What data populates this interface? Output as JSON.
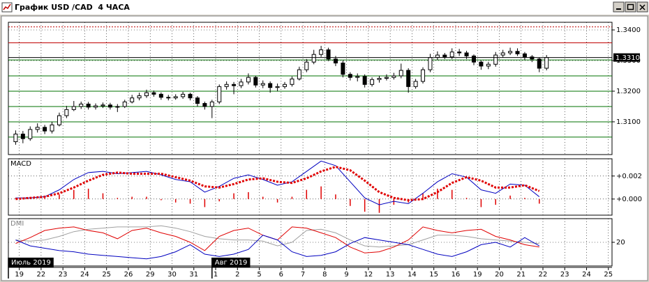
{
  "window_title": "График USD /CAD  4 ЧАСА",
  "x_axis": {
    "xlim": [
      -3,
      163
    ],
    "xticks": [
      {
        "value": 0,
        "label": "19"
      },
      {
        "value": 6,
        "label": "22"
      },
      {
        "value": 12,
        "label": "23"
      },
      {
        "value": 18,
        "label": "24"
      },
      {
        "value": 24,
        "label": "25"
      },
      {
        "value": 30,
        "label": "26"
      },
      {
        "value": 36,
        "label": "29"
      },
      {
        "value": 42,
        "label": "30"
      },
      {
        "value": 48,
        "label": "31"
      },
      {
        "value": 54,
        "label": "1"
      },
      {
        "value": 60,
        "label": "2"
      },
      {
        "value": 66,
        "label": "5"
      },
      {
        "value": 72,
        "label": "6"
      },
      {
        "value": 78,
        "label": "7"
      },
      {
        "value": 84,
        "label": "8"
      },
      {
        "value": 90,
        "label": "9"
      },
      {
        "value": 96,
        "label": "12"
      },
      {
        "value": 102,
        "label": "13"
      },
      {
        "value": 108,
        "label": "14"
      },
      {
        "value": 114,
        "label": "15"
      },
      {
        "value": 120,
        "label": "16"
      },
      {
        "value": 126,
        "label": "19"
      },
      {
        "value": 132,
        "label": "20"
      },
      {
        "value": 138,
        "label": "21"
      },
      {
        "value": 144,
        "label": "22"
      },
      {
        "value": 150,
        "label": "23"
      },
      {
        "value": 156,
        "label": "24"
      },
      {
        "value": 162,
        "label": "25"
      }
    ],
    "periods": [
      {
        "value": -3,
        "label": "Июль 2019"
      },
      {
        "value": 53,
        "label": "Авг 2019"
      }
    ]
  },
  "chart_data": [
    {
      "type": "candlestick",
      "ylim": [
        1.2993,
        1.3425
      ],
      "yticks": [
        {
          "value": 1.31,
          "label": "1.3100"
        },
        {
          "value": 1.32,
          "label": "1.3200"
        },
        {
          "value": 1.33,
          "label": "1.3300"
        },
        {
          "value": 1.34,
          "label": "1.3400"
        }
      ],
      "grid": true,
      "colors": {
        "up": "#ffffff",
        "down": "#000000",
        "outline": "#000000"
      },
      "x": [
        -1,
        1,
        3,
        5,
        7,
        9,
        11,
        13,
        15,
        17,
        19,
        21,
        23,
        25,
        27,
        29,
        31,
        33,
        35,
        37,
        39,
        41,
        43,
        45,
        47,
        49,
        51,
        53,
        55,
        57,
        59,
        61,
        63,
        65,
        67,
        69,
        71,
        73,
        75,
        77,
        79,
        81,
        83,
        85,
        87,
        89,
        91,
        93,
        95,
        97,
        99,
        101,
        103,
        105,
        107,
        109,
        111,
        113,
        115,
        117,
        119,
        121,
        123,
        125,
        127,
        129,
        131,
        133,
        135,
        137,
        139,
        141,
        143,
        145
      ],
      "open": [
        1.3035,
        1.306,
        1.3045,
        1.3075,
        1.3082,
        1.307,
        1.309,
        1.312,
        1.314,
        1.315,
        1.3158,
        1.3148,
        1.3152,
        1.3155,
        1.3148,
        1.315,
        1.3165,
        1.3178,
        1.3185,
        1.3195,
        1.319,
        1.318,
        1.3178,
        1.3182,
        1.319,
        1.3178,
        1.316,
        1.315,
        1.3165,
        1.3215,
        1.3222,
        1.3218,
        1.323,
        1.3245,
        1.322,
        1.3225,
        1.3212,
        1.3215,
        1.3222,
        1.324,
        1.327,
        1.3295,
        1.332,
        1.3335,
        1.3305,
        1.3292,
        1.3255,
        1.3245,
        1.3248,
        1.3222,
        1.3238,
        1.3242,
        1.3245,
        1.325,
        1.3268,
        1.3215,
        1.3232,
        1.327,
        1.331,
        1.3318,
        1.3312,
        1.3328,
        1.3325,
        1.3315,
        1.3295,
        1.3282,
        1.3288,
        1.3318,
        1.3325,
        1.333,
        1.3322,
        1.3312,
        1.3305,
        1.3275
      ],
      "high": [
        1.3072,
        1.307,
        1.3085,
        1.3095,
        1.309,
        1.31,
        1.313,
        1.3152,
        1.3168,
        1.3166,
        1.3165,
        1.316,
        1.3163,
        1.3162,
        1.3158,
        1.3172,
        1.3188,
        1.3195,
        1.3205,
        1.3202,
        1.3196,
        1.3188,
        1.319,
        1.3198,
        1.3195,
        1.3184,
        1.3166,
        1.3172,
        1.3222,
        1.3232,
        1.323,
        1.324,
        1.3258,
        1.325,
        1.3235,
        1.3232,
        1.3225,
        1.323,
        1.3248,
        1.328,
        1.3305,
        1.3335,
        1.3348,
        1.3342,
        1.3315,
        1.33,
        1.3262,
        1.3258,
        1.3255,
        1.3245,
        1.325,
        1.3255,
        1.326,
        1.329,
        1.3275,
        1.324,
        1.3278,
        1.3322,
        1.333,
        1.3325,
        1.334,
        1.3338,
        1.3332,
        1.332,
        1.33,
        1.3296,
        1.3328,
        1.3335,
        1.3342,
        1.334,
        1.3328,
        1.3318,
        1.331,
        1.3318
      ],
      "low": [
        1.3025,
        1.303,
        1.3038,
        1.3065,
        1.306,
        1.3062,
        1.3085,
        1.3112,
        1.3135,
        1.3142,
        1.314,
        1.314,
        1.3145,
        1.314,
        1.3132,
        1.3145,
        1.316,
        1.317,
        1.3178,
        1.3182,
        1.3172,
        1.317,
        1.3172,
        1.3175,
        1.317,
        1.315,
        1.314,
        1.3112,
        1.3158,
        1.3205,
        1.319,
        1.321,
        1.3222,
        1.3212,
        1.321,
        1.3195,
        1.32,
        1.3208,
        1.3215,
        1.3235,
        1.3262,
        1.3288,
        1.3312,
        1.3298,
        1.3282,
        1.3245,
        1.3235,
        1.3232,
        1.3212,
        1.3215,
        1.3228,
        1.3235,
        1.3238,
        1.3242,
        1.3195,
        1.3208,
        1.3225,
        1.3262,
        1.3302,
        1.3305,
        1.3305,
        1.3315,
        1.3305,
        1.3285,
        1.327,
        1.3272,
        1.328,
        1.331,
        1.3318,
        1.3315,
        1.3302,
        1.3295,
        1.3262,
        1.3268
      ],
      "close": [
        1.306,
        1.3045,
        1.3075,
        1.3082,
        1.307,
        1.309,
        1.312,
        1.314,
        1.315,
        1.3158,
        1.3148,
        1.3152,
        1.3155,
        1.3148,
        1.315,
        1.3165,
        1.3178,
        1.3185,
        1.3195,
        1.319,
        1.318,
        1.3178,
        1.3182,
        1.319,
        1.3178,
        1.316,
        1.315,
        1.3165,
        1.3215,
        1.3222,
        1.3218,
        1.323,
        1.3245,
        1.322,
        1.3225,
        1.3212,
        1.3215,
        1.3222,
        1.324,
        1.327,
        1.3295,
        1.332,
        1.3335,
        1.3305,
        1.3292,
        1.3255,
        1.3245,
        1.3248,
        1.3222,
        1.3238,
        1.3242,
        1.3245,
        1.325,
        1.3268,
        1.3215,
        1.3232,
        1.327,
        1.331,
        1.3318,
        1.3312,
        1.3328,
        1.3325,
        1.3315,
        1.3295,
        1.3282,
        1.3288,
        1.3318,
        1.3325,
        1.333,
        1.3322,
        1.3312,
        1.3305,
        1.3275,
        1.331
      ],
      "levels": [
        {
          "value": 1.341,
          "color": "#c00000",
          "style": "dotted"
        },
        {
          "value": 1.3358,
          "color": "#c00000",
          "style": "solid"
        },
        {
          "value": 1.3302,
          "color": "#007000",
          "style": "solid"
        },
        {
          "value": 1.325,
          "color": "#007000",
          "style": "solid"
        },
        {
          "value": 1.32,
          "color": "#007000",
          "style": "solid"
        },
        {
          "value": 1.315,
          "color": "#007000",
          "style": "solid"
        },
        {
          "value": 1.31,
          "color": "#007000",
          "style": "solid"
        },
        {
          "value": 1.305,
          "color": "#007000",
          "style": "solid"
        }
      ],
      "current_price": {
        "value": 1.331,
        "label": "1.3310"
      }
    },
    {
      "type": "macd",
      "title": "MACD",
      "ylim": [
        -0.0014,
        0.0035
      ],
      "yticks": [
        {
          "value": 0.002,
          "label": "+0.002"
        },
        {
          "value": 0,
          "label": "+0.000"
        }
      ],
      "grid": true,
      "x": [
        -1,
        3,
        7,
        11,
        15,
        19,
        23,
        27,
        31,
        35,
        39,
        43,
        47,
        51,
        55,
        59,
        63,
        67,
        71,
        75,
        79,
        83,
        87,
        91,
        95,
        99,
        103,
        107,
        111,
        115,
        119,
        123,
        127,
        131,
        135,
        139,
        143
      ],
      "series": [
        {
          "role": "macd",
          "color": "#0000c0",
          "style": "solid",
          "values": [
            0.0001,
            0.0001,
            0.0002,
            0.0008,
            0.0017,
            0.0023,
            0.0024,
            0.0022,
            0.0023,
            0.0024,
            0.0021,
            0.0017,
            0.0015,
            0.0006,
            0.0011,
            0.0018,
            0.0021,
            0.0017,
            0.0012,
            0.0015,
            0.0024,
            0.0033,
            0.0029,
            0.0015,
            0.0001,
            -0.0005,
            -0.0002,
            -0.0004,
            0.0005,
            0.0015,
            0.0022,
            0.0019,
            0.0008,
            0.0005,
            0.0013,
            0.0012,
            0.0002
          ]
        },
        {
          "role": "signal",
          "color": "#e00000",
          "style": "dotted",
          "values": [
            0,
            0.0001,
            0.0002,
            0.0005,
            0.001,
            0.0016,
            0.0021,
            0.0023,
            0.0022,
            0.0022,
            0.0022,
            0.0019,
            0.0016,
            0.0011,
            0.001,
            0.0013,
            0.0017,
            0.0018,
            0.0015,
            0.0014,
            0.0018,
            0.0024,
            0.0028,
            0.0025,
            0.0016,
            0.0006,
            0.0001,
            -0.0001,
            0,
            0.0006,
            0.0014,
            0.0019,
            0.0016,
            0.001,
            0.001,
            0.0012,
            0.0007
          ]
        },
        {
          "role": "histogram",
          "color": "#e00000",
          "style": "bars",
          "values": [
            0.0001,
            0.0001,
            0.0001,
            0.0004,
            0.0008,
            0.0009,
            0.0005,
            0.0001,
            0.0002,
            0.0002,
            -0.0001,
            -0.0003,
            -0.0004,
            -0.0007,
            -0.0002,
            0.0005,
            0.0006,
            0.0002,
            -0.0003,
            0.0002,
            0.0008,
            0.0011,
            0.0004,
            -0.0006,
            -0.0011,
            -0.0012,
            -0.0005,
            -0.0003,
            0.0005,
            0.0009,
            0.0008,
            0.0001,
            -0.0007,
            -0.0005,
            0.0003,
            0.0001,
            -0.0004
          ]
        }
      ]
    },
    {
      "type": "dmi",
      "title": "DMI",
      "ylim": [
        0,
        40
      ],
      "yticks": [
        20
      ],
      "grid": true,
      "x": [
        -1,
        3,
        7,
        11,
        15,
        19,
        23,
        27,
        31,
        35,
        39,
        43,
        47,
        51,
        55,
        59,
        63,
        67,
        71,
        75,
        79,
        83,
        87,
        91,
        95,
        99,
        103,
        107,
        111,
        115,
        119,
        123,
        127,
        131,
        135,
        139,
        143
      ],
      "series": [
        {
          "role": "adx",
          "color": "#a0a0a0",
          "style": "solid",
          "values": [
            22,
            21,
            22,
            25,
            29,
            31,
            32,
            33,
            33,
            33,
            34,
            32,
            29,
            25,
            23,
            22,
            22,
            21,
            17,
            20,
            30,
            31,
            28,
            22,
            17,
            16,
            17,
            18,
            22,
            26,
            26,
            25,
            23,
            22,
            21,
            20,
            19
          ]
        },
        {
          "role": "plus-di",
          "color": "#e00000",
          "style": "solid",
          "values": [
            19,
            24,
            30,
            32,
            33,
            30,
            28,
            23,
            30,
            32,
            28,
            25,
            20,
            13,
            25,
            30,
            32,
            26,
            22,
            33,
            32,
            28,
            24,
            16,
            11,
            12,
            16,
            22,
            33,
            30,
            28,
            30,
            31,
            25,
            22,
            18,
            16
          ]
        },
        {
          "role": "minus-di",
          "color": "#0000c0",
          "style": "solid",
          "values": [
            22,
            17,
            15,
            13,
            12,
            10,
            9,
            8,
            7,
            6,
            8,
            12,
            18,
            10,
            8,
            10,
            14,
            26,
            22,
            12,
            8,
            9,
            12,
            19,
            24,
            22,
            20,
            18,
            14,
            10,
            8,
            12,
            18,
            20,
            16,
            24,
            17
          ]
        }
      ]
    }
  ]
}
